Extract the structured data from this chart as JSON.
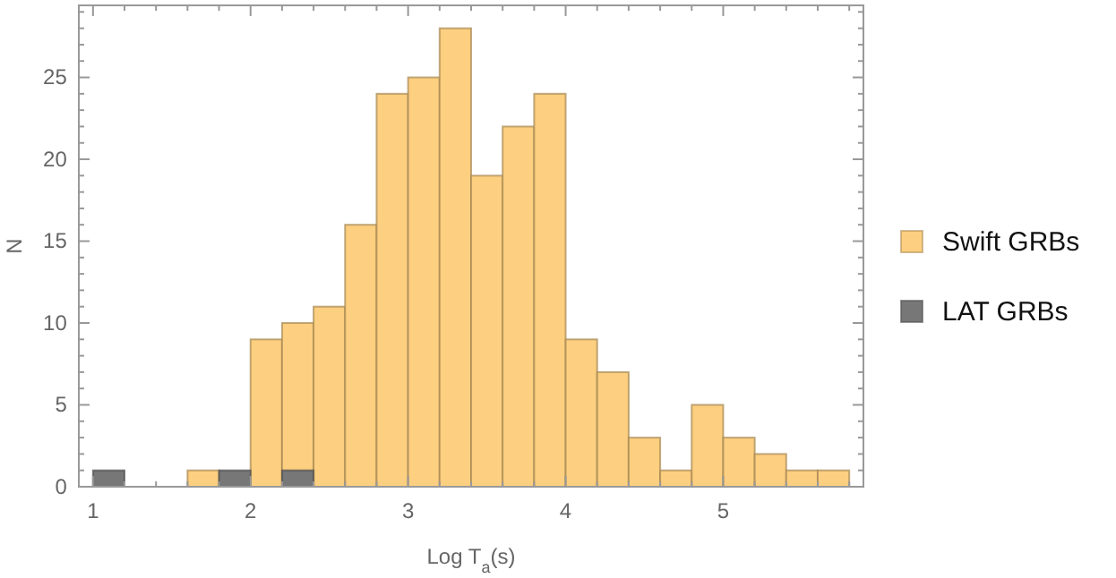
{
  "chart_data": {
    "type": "histogram",
    "xlabel": "Log T$_{a}$(s)",
    "ylabel": "N",
    "bins": [
      1.0,
      1.2,
      1.4,
      1.6,
      1.8,
      2.0,
      2.2,
      2.4,
      2.6,
      2.8,
      3.0,
      3.2,
      3.4,
      3.6,
      3.8,
      4.0,
      4.2,
      4.4,
      4.6,
      4.8,
      5.0,
      5.2,
      5.4,
      5.6,
      5.8
    ],
    "series": [
      {
        "name": "Swift GRBs",
        "color": "#fdcf80",
        "values": [
          0,
          0,
          0,
          1,
          0,
          9,
          10,
          11,
          16,
          24,
          25,
          28,
          19,
          22,
          24,
          9,
          7,
          3,
          1,
          5,
          3,
          2,
          1,
          1
        ]
      },
      {
        "name": "LAT GRBs",
        "color": "#777777",
        "values": [
          1,
          0,
          0,
          0,
          1,
          0,
          1,
          0,
          0,
          0,
          0,
          0,
          0,
          0,
          0,
          0,
          0,
          0,
          0,
          0,
          0,
          0,
          0,
          0
        ]
      }
    ],
    "xlim": [
      0.91,
      5.89
    ],
    "ylim": [
      0,
      29.4
    ],
    "xticks": [
      1,
      {
        "value": 1.2,
        "label": null
      },
      {
        "value": 1.4,
        "label": null
      },
      {
        "value": 1.6,
        "label": null
      },
      {
        "value": 1.8,
        "label": null
      },
      2,
      {
        "value": 2.2,
        "label": null
      },
      {
        "value": 2.4,
        "label": null
      },
      {
        "value": 2.6,
        "label": null
      },
      {
        "value": 2.8,
        "label": null
      },
      3,
      {
        "value": 3.2,
        "label": null
      },
      {
        "value": 3.4,
        "label": null
      },
      {
        "value": 3.6,
        "label": null
      },
      {
        "value": 3.8,
        "label": null
      },
      4,
      {
        "value": 4.2,
        "label": null
      },
      {
        "value": 4.4,
        "label": null
      },
      {
        "value": 4.6,
        "label": null
      },
      {
        "value": 4.8,
        "label": null
      },
      5,
      {
        "value": 5.2,
        "label": null
      },
      {
        "value": 5.4,
        "label": null
      },
      {
        "value": 5.6,
        "label": null
      },
      {
        "value": 5.8,
        "label": null
      }
    ],
    "yticks": [
      0,
      {
        "value": 1,
        "label": null
      },
      {
        "value": 2,
        "label": null
      },
      {
        "value": 3,
        "label": null
      },
      {
        "value": 4,
        "label": null
      },
      5,
      {
        "value": 6,
        "label": null
      },
      {
        "value": 7,
        "label": null
      },
      {
        "value": 8,
        "label": null
      },
      {
        "value": 9,
        "label": null
      },
      10,
      {
        "value": 11,
        "label": null
      },
      {
        "value": 12,
        "label": null
      },
      {
        "value": 13,
        "label": null
      },
      {
        "value": 14,
        "label": null
      },
      15,
      {
        "value": 16,
        "label": null
      },
      {
        "value": 17,
        "label": null
      },
      {
        "value": 18,
        "label": null
      },
      {
        "value": 19,
        "label": null
      },
      20,
      {
        "value": 21,
        "label": null
      },
      {
        "value": 22,
        "label": null
      },
      {
        "value": 23,
        "label": null
      },
      {
        "value": 24,
        "label": null
      },
      25,
      {
        "value": 26,
        "label": null
      },
      {
        "value": 27,
        "label": null
      },
      {
        "value": 28,
        "label": null
      },
      {
        "value": 29,
        "label": null
      }
    ],
    "grid": false,
    "legend": "right"
  }
}
